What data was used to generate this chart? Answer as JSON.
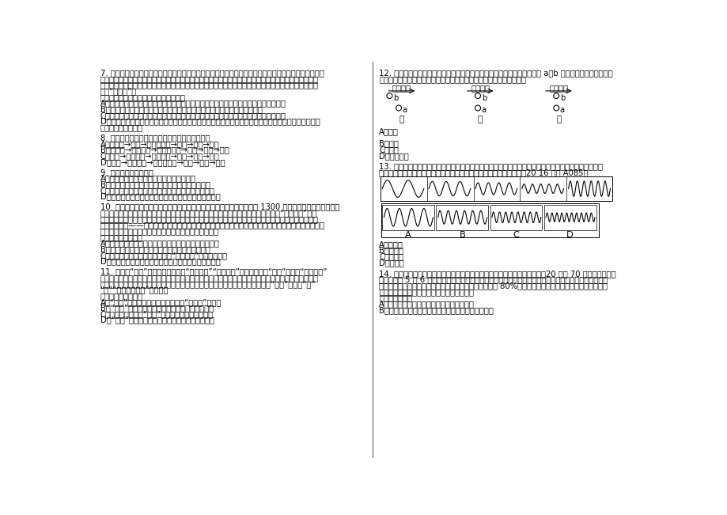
{
  "background_color": "#ffffff",
  "font_size": 7.2,
  "col_divider": 460,
  "q7": "7. 全球范围内的森林是一个巨大的碳汇，它们通过光合作用和林木生产所吸收的碳多于其通过呼吸和腐烂\n所释放的碳。与此同时，在森林环境中，树木生长相对较快，蔽发掉大量会形成云的水分，从而使气候冷\n却。这就意味着森林具有降温作用，还吸收了更多的导致全球变暖的二氧化碳，所以说森林是显而易见的\n气候“冷却器”。\n以下哪项如果为真，没有质疑上述观点：\nA、近十几年，一些地区不断增加林木植被，扩大森林覆盖率，但当地气候变暖并未改善\nB、高纬度的北方森林会产生菇塔，菇塔形成气溶胶后会阻挡阳光，形成云粒\nC、在山区或干燥地区，森林会降低地球的表面反射率，让地球反射回太空的入射光减少\nD、树木释放的有机化合物中，包含一种名为异戊二烯的化合物，它能够与空气中的氮氧化物发生反应，\n形成强大的升温作用",
  "q8": "8. 一艾油轮自科威特港驶往大连，其最短航线为：\nA、波斯湾→红海→马六甲海峡→南海→黄海→东海\nB、波斯湾→阿拉伯海→马六甲海峡→南海→东海→黄海\nC、红海→阿拉伯海→孟加拉湾→南海→东海→黄海\nD、红海→孟加拉湾→马六甲海峡→南海→黄海→东海",
  "q9": "9. 下列说法正确的是：\nA、油锅起火立即用水扑灭，并迅速息灭炉火\nB、电路保险丝（片）燕断，用铜线代替以保护电器\nC、身上着火，就地打滚，或用厚重衣物覆盖压灭火苗\nD、停电的夜晚发现煮气泄漏后，点燃蜡烛查找泄漏原因",
  "q10": "10. 唐卡是极富藏族文化特色的一种绘画形式，自吐蕃王朝兴起至今已有 1300 多年的历史，是雪域高原的\n文化瑬宝。它的题材除了宗教外，还有很多历史和民俗内容，因此又被称为了解西藏的“百科全书”。所\n以，要想了解西藏的历史，除了正襟危坐地阅读严谨但略显呶板的大部头史书外，你还可以选择一种惬意\n和愉悦的方式——欣赏唐卡，与众多的古人对话，想象曾经的历史事件，体味藏人丰富的精神世界，了解\n独特的藏地民俗，这是一个让历史变得立体可感的过程。\n这段文字意在说明：\nA、唐卡可以给大家提供一种惬意轻松的了解西藏的方式\nB、唐卡中记录了独特的藏族民俗和曾经的历史事件\nC、唐卡是了解西藏文化和历史的“百科全书”式的绘画形式\nD、唐卡是极富藏族文化特色且历史悠久的一种绘画形式",
  "q11": "11. 传统的“穿越”，对象是空间，如“穿越边境”“穿越沙漠”；现在大多的“穿越”，则是“穿越时空”\n的简称，是文艺作品中一种展开情节的流行手段。穿越电影、穿越电视剧、穿越小说等共同的特点，是人\n物会不断地往来于不同的时空。这种时空的乱容易造成受众的费解或误解，于是，“穿越”又有了“玄”\n“乱”“令人莫名其妙”等意思。\n该段内容主要说明：\nA、“穿越”一词被赋予了新含义，有了“玄、乱”等意思\nB、“穿越”成为文艺创作中一种展开情节的流行说法\nC、因时空的错乱，“穿越”作品容易给受众造成误读\nD、“穿越”作品中的人物可以自由地往来于各个时空",
  "q12_header": "12. 一列火车在平直的轨道上做匀速直线运动，从车厢顶部某一点先后落下 a、b 两个小球，站在路旁的人\n看来，它在空中的相对位置如下图中的甲、乙、丙所示，则正确的是：",
  "q12_answers": "A、图甲\n\nB、图乙\nC、图丙\nD、无法判断",
  "q13_header": "13. 在题干中给出一套图形，其中有五个图，这五个图呼现一定的规律性。在给出的另一套图形中，有四\n个图，从中选出唯一的一项作为保持左边五个图规律性的第六个图：　20 16 江苏 A085】",
  "q13_answers": "A、如图示\nB、如图示\nC、如图示\nD、如图示",
  "q14": "14. 美国研究人员分析了南极半岛和邻近的斯科舎海地区的实地数据后发现，20 世纪 70 年代以来，当地\n气温上升了 5 至 6 摄氏度，并且来自其他海域的哺乳动物增多导致极地哺乳动物捕食竞争加剧。因此，在\n上述地区作为哺乳动物主要食物来源的磷虾的密度降低了 80%。而同一时期，生活在该地区以磷虾为主食\n的阿德利企鹅和帽带企鹅的数量也急剧减少。\n由此可以推论：\nA、气温上升对南极地域生态环境的破坏极大\nB、气温上升造成了南极海洋哺乳动物捕食的竞争加剧",
  "train_labels": [
    "车行方向",
    "车行方向",
    "车行方向"
  ],
  "train_sublabels": [
    "甲",
    "乙",
    "丙"
  ],
  "wave_labels": [
    "A",
    "B",
    "C",
    "D"
  ]
}
